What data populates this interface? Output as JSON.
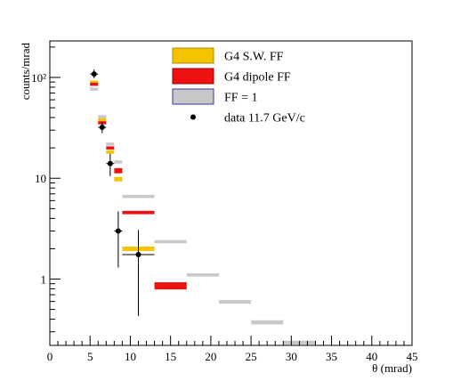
{
  "chart_data": {
    "type": "scatter",
    "title": "",
    "xlabel": "θ (mrad)",
    "ylabel": "counts/mrad",
    "xlim": [
      0,
      45
    ],
    "ylim": [
      0.22,
      230
    ],
    "y_scale": "log",
    "grid": false,
    "legend_position": "top-right",
    "x_ticks": [
      0,
      5,
      10,
      15,
      20,
      25,
      30,
      35,
      40,
      45
    ],
    "x_tick_labels": [
      "0",
      "5",
      "10",
      "15",
      "20",
      "25",
      "30",
      "35",
      "40",
      "45"
    ],
    "y_ticks": [
      1,
      10,
      100
    ],
    "y_tick_labels": [
      "1",
      "10",
      "10²"
    ],
    "legend": [
      {
        "label": "G4 S.W. FF",
        "color": "#f5c400",
        "border": "#b08800",
        "kind": "box"
      },
      {
        "label": "G4 dipole FF",
        "color": "#ee1111",
        "border": "#990000",
        "kind": "box"
      },
      {
        "label": "FF = 1",
        "color": "#c8c8c8",
        "border": "#3333aa",
        "kind": "box"
      },
      {
        "label": "data 11.7 GeV/c",
        "color": "#000000",
        "kind": "marker"
      }
    ],
    "series": [
      {
        "name": "G4 S.W. FF",
        "kind": "band",
        "color": "#f5c400",
        "points": [
          {
            "x0": 5,
            "x1": 6,
            "lo": 88,
            "hi": 92
          },
          {
            "x0": 6,
            "x1": 7,
            "lo": 37,
            "hi": 39
          },
          {
            "x0": 7,
            "x1": 8,
            "lo": 17.5,
            "hi": 19
          },
          {
            "x0": 8,
            "x1": 9,
            "lo": 9.3,
            "hi": 10.3
          },
          {
            "x0": 9,
            "x1": 13,
            "lo": 1.9,
            "hi": 2.1
          }
        ]
      },
      {
        "name": "G4 dipole FF",
        "kind": "band",
        "color": "#ee1111",
        "points": [
          {
            "x0": 5,
            "x1": 6,
            "lo": 84,
            "hi": 87
          },
          {
            "x0": 6,
            "x1": 7,
            "lo": 34.5,
            "hi": 36.5
          },
          {
            "x0": 7,
            "x1": 8,
            "lo": 19.3,
            "hi": 20.7
          },
          {
            "x0": 8,
            "x1": 9,
            "lo": 11.2,
            "hi": 12.6
          },
          {
            "x0": 9,
            "x1": 13,
            "lo": 4.4,
            "hi": 4.75
          },
          {
            "x0": 13,
            "x1": 17,
            "lo": 0.79,
            "hi": 0.93
          }
        ]
      },
      {
        "name": "FF = 1",
        "kind": "band",
        "color": "#c8c8c8",
        "points": [
          {
            "x0": 5,
            "x1": 6,
            "lo": 75,
            "hi": 78
          },
          {
            "x0": 6,
            "x1": 7,
            "lo": 40,
            "hi": 41.5
          },
          {
            "x0": 7,
            "x1": 8,
            "lo": 21.3,
            "hi": 22.3
          },
          {
            "x0": 8,
            "x1": 9,
            "lo": 14.2,
            "hi": 14.8
          },
          {
            "x0": 9,
            "x1": 13,
            "lo": 6.45,
            "hi": 6.75
          },
          {
            "x0": 13,
            "x1": 17,
            "lo": 2.28,
            "hi": 2.42
          },
          {
            "x0": 17,
            "x1": 21,
            "lo": 1.06,
            "hi": 1.14
          },
          {
            "x0": 21,
            "x1": 25,
            "lo": 0.57,
            "hi": 0.62
          },
          {
            "x0": 25,
            "x1": 29,
            "lo": 0.355,
            "hi": 0.39
          },
          {
            "x0": 29,
            "x1": 33,
            "lo": 0.225,
            "hi": 0.245
          }
        ]
      },
      {
        "name": "data 11.7 GeV/c",
        "kind": "points",
        "color": "#000000",
        "points": [
          {
            "x": 5.5,
            "y": 108,
            "xerr": 0.5,
            "ylo": 98,
            "yhi": 120
          },
          {
            "x": 6.5,
            "y": 32,
            "xerr": 0.5,
            "ylo": 28,
            "yhi": 36
          },
          {
            "x": 7.5,
            "y": 14,
            "xerr": 0.5,
            "ylo": 10.5,
            "yhi": 17.5
          },
          {
            "x": 8.5,
            "y": 3.0,
            "xerr": 0.5,
            "ylo": 1.3,
            "yhi": 4.7
          },
          {
            "x": 11,
            "y": 1.75,
            "xerr": 2,
            "ylo": 0.43,
            "yhi": 3.07
          }
        ]
      }
    ]
  }
}
